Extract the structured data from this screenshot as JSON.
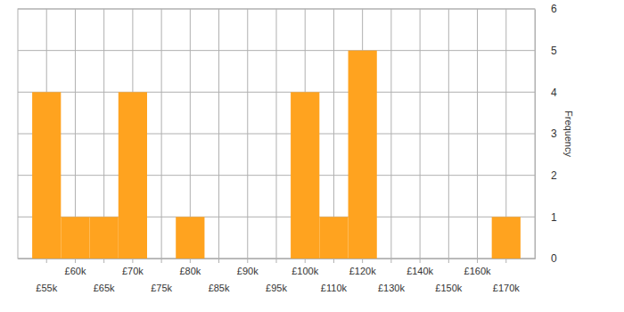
{
  "chart_data": {
    "type": "bar",
    "categories": [
      "£55k",
      "£60k",
      "£65k",
      "£70k",
      "£75k",
      "£80k",
      "£85k",
      "£90k",
      "£95k",
      "£100k",
      "£110k",
      "£120k",
      "£130k",
      "£140k",
      "£150k",
      "£160k",
      "£170k"
    ],
    "values": [
      4,
      1,
      1,
      4,
      0,
      1,
      0,
      0,
      0,
      4,
      1,
      5,
      0,
      0,
      0,
      0,
      1
    ],
    "color": "#ffa31f",
    "ylabel": "Frequency",
    "ylim": [
      0,
      6
    ],
    "yticks": [
      0,
      1,
      2,
      3,
      4,
      5,
      6
    ],
    "grid": true
  }
}
